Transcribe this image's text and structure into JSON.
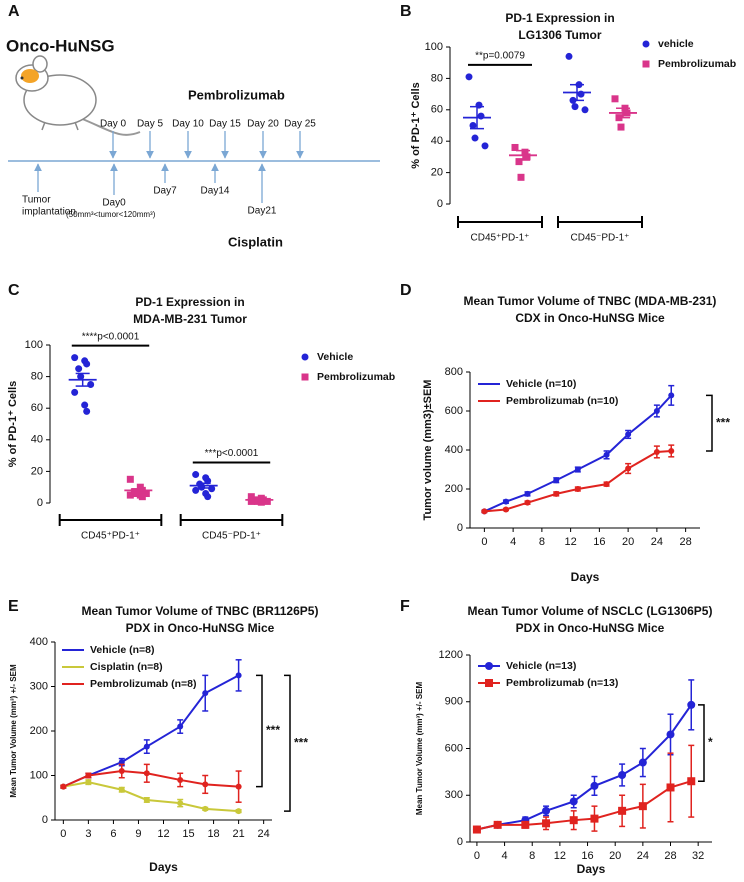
{
  "schematic": {
    "label": "A",
    "model": "Onco-HuNSG",
    "drug1": "Pembrolizumab",
    "drug2": "Cisplatin",
    "drug1_days": [
      "Day 0",
      "Day 5",
      "Day 10",
      "Day 15",
      "Day 20",
      "Day 25"
    ],
    "drug2_days": [
      "Day0",
      "Day7",
      "Day14",
      "Day21"
    ],
    "implant": [
      "Tumor",
      "implantation"
    ],
    "size_range": "(50mm³<tumor<120mm³)"
  },
  "chart_data": [
    {
      "type": "dot",
      "label": "B",
      "title": [
        "PD-1 Expression in",
        "LG1306 Tumor"
      ],
      "y_label": "% of PD-1⁺ Cells",
      "categories": [
        "CD45⁺PD-1⁺",
        "CD45⁻PD-1⁺"
      ],
      "ylim": [
        0,
        100
      ],
      "yticks": [
        0,
        20,
        40,
        60,
        80,
        100
      ],
      "series": [
        {
          "name": "vehicle",
          "color": "#2424d6",
          "marker": "circle",
          "values": [
            [
              81,
              63,
              56,
              50,
              42,
              37
            ],
            [
              94,
              76,
              70,
              66,
              62,
              60
            ]
          ],
          "mean": [
            55,
            71
          ],
          "sem": [
            7,
            5
          ]
        },
        {
          "name": "Pembrolizumab",
          "color": "#d9358a",
          "marker": "square",
          "values": [
            [
              36,
              33,
              30,
              27,
              17
            ],
            [
              67,
              61,
              58,
              55,
              49
            ]
          ],
          "mean": [
            31,
            58
          ],
          "sem": [
            3,
            3
          ]
        }
      ],
      "annotations": [
        {
          "text": "**p=0.0079",
          "category": 0
        }
      ]
    },
    {
      "type": "dot",
      "label": "C",
      "title": [
        "PD-1 Expression in",
        "MDA-MB-231 Tumor"
      ],
      "y_label": "% of PD-1⁺ Cells",
      "categories": [
        "CD45⁺PD-1⁺",
        "CD45⁻PD-1⁺"
      ],
      "ylim": [
        0,
        100
      ],
      "yticks": [
        0,
        20,
        40,
        60,
        80,
        100
      ],
      "series": [
        {
          "name": "Vehicle",
          "color": "#2424d6",
          "marker": "circle",
          "values": [
            [
              92,
              90,
              88,
              85,
              80,
              75,
              70,
              62,
              58
            ],
            [
              18,
              16,
              14,
              12,
              10,
              9,
              8,
              6,
              4
            ]
          ],
          "mean": [
            78,
            11
          ],
          "sem": [
            4,
            1.5
          ]
        },
        {
          "name": "Pembrolizumab",
          "color": "#d9358a",
          "marker": "square",
          "values": [
            [
              15,
              10,
              8,
              7,
              6,
              6,
              5,
              5,
              4
            ],
            [
              4,
              3,
              2,
              2,
              1,
              1,
              1,
              0.5
            ]
          ],
          "mean": [
            8,
            2
          ],
          "sem": [
            1,
            0.5
          ]
        }
      ],
      "annotations": [
        {
          "text": "****p<0.0001",
          "category": 0
        },
        {
          "text": "***p<0.0001",
          "category": 1
        }
      ]
    },
    {
      "type": "line",
      "label": "D",
      "title": [
        "Mean Tumor Volume of TNBC (MDA-MB-231)",
        "CDX in Onco-HuNSG Mice"
      ],
      "x_label": "Days",
      "y_label": "Tumor volume (mm3)±SEM",
      "x": [
        0,
        3,
        6,
        10,
        13,
        17,
        20,
        24,
        26
      ],
      "xlim": [
        -2,
        30
      ],
      "xticks": [
        0,
        4,
        8,
        12,
        16,
        20,
        24,
        28
      ],
      "ylim": [
        0,
        800
      ],
      "yticks": [
        0,
        200,
        400,
        600,
        800
      ],
      "series": [
        {
          "name": "Vehicle (n=10)",
          "color": "#2424d6",
          "marker": "circle",
          "values": [
            85,
            135,
            175,
            245,
            300,
            375,
            480,
            600,
            680
          ],
          "errors": [
            5,
            8,
            10,
            12,
            12,
            20,
            20,
            30,
            50
          ]
        },
        {
          "name": "Pembrolizumab (n=10)",
          "color": "#e0231f",
          "marker": "circle",
          "values": [
            85,
            95,
            130,
            175,
            200,
            225,
            305,
            390,
            395
          ],
          "errors": [
            5,
            5,
            8,
            10,
            10,
            10,
            25,
            30,
            30
          ]
        }
      ],
      "annotations": [
        {
          "text": "***"
        }
      ]
    },
    {
      "type": "line",
      "label": "E",
      "title": [
        "Mean Tumor Volume of TNBC (BR1126P5)",
        "PDX in Onco-HuNSG Mice"
      ],
      "x_label": "Days",
      "y_label": "Mean Tumor Volume (mm³) +/- SEM",
      "x": [
        0,
        3,
        7,
        10,
        14,
        17,
        21
      ],
      "xlim": [
        -1,
        25
      ],
      "xticks": [
        0,
        3,
        6,
        9,
        12,
        15,
        18,
        21,
        24
      ],
      "ylim": [
        0,
        400
      ],
      "yticks": [
        0,
        100,
        200,
        300,
        400
      ],
      "series": [
        {
          "name": "Vehicle (n=8)",
          "color": "#2424d6",
          "marker": "circle",
          "values": [
            75,
            100,
            130,
            165,
            210,
            285,
            325
          ],
          "errors": [
            3,
            5,
            8,
            15,
            15,
            40,
            35
          ]
        },
        {
          "name": "Cisplatin (n=8)",
          "color": "#c9c83a",
          "marker": "circle",
          "values": [
            75,
            85,
            68,
            45,
            38,
            25,
            20
          ],
          "errors": [
            3,
            5,
            5,
            5,
            8,
            3,
            3
          ]
        },
        {
          "name": "Pembrolizumab (n=8)",
          "color": "#e0231f",
          "marker": "circle",
          "values": [
            75,
            100,
            110,
            105,
            90,
            80,
            75
          ],
          "errors": [
            3,
            5,
            15,
            20,
            15,
            20,
            35
          ]
        }
      ],
      "annotations": [
        {
          "text": "***"
        },
        {
          "text": "***"
        }
      ]
    },
    {
      "type": "line",
      "label": "F",
      "title": [
        "Mean Tumor Volume of NSCLC  (LG1306P5)",
        "PDX in Onco-HuNSG Mice"
      ],
      "x_label": "Days",
      "y_label": "Mean Tumor Volume (mm³) +/- SEM",
      "x": [
        0,
        3,
        7,
        10,
        14,
        17,
        21,
        24,
        28,
        31
      ],
      "xlim": [
        -1,
        34
      ],
      "xticks": [
        0,
        4,
        8,
        12,
        16,
        20,
        24,
        28,
        32
      ],
      "ylim": [
        0,
        1200
      ],
      "yticks": [
        0,
        300,
        600,
        900,
        1200
      ],
      "series": [
        {
          "name": "Vehicle (n=13)",
          "color": "#2424d6",
          "marker": "circle",
          "values": [
            80,
            110,
            140,
            200,
            260,
            360,
            430,
            510,
            690,
            880
          ],
          "errors": [
            10,
            15,
            20,
            30,
            40,
            60,
            70,
            90,
            130,
            160
          ]
        },
        {
          "name": "Pembrolizumab (n=13)",
          "color": "#e0231f",
          "marker": "square",
          "values": [
            80,
            110,
            110,
            120,
            140,
            150,
            200,
            230,
            350,
            390
          ],
          "errors": [
            10,
            15,
            20,
            40,
            60,
            80,
            100,
            140,
            220,
            230
          ]
        }
      ],
      "annotations": [
        {
          "text": "*"
        }
      ]
    }
  ]
}
